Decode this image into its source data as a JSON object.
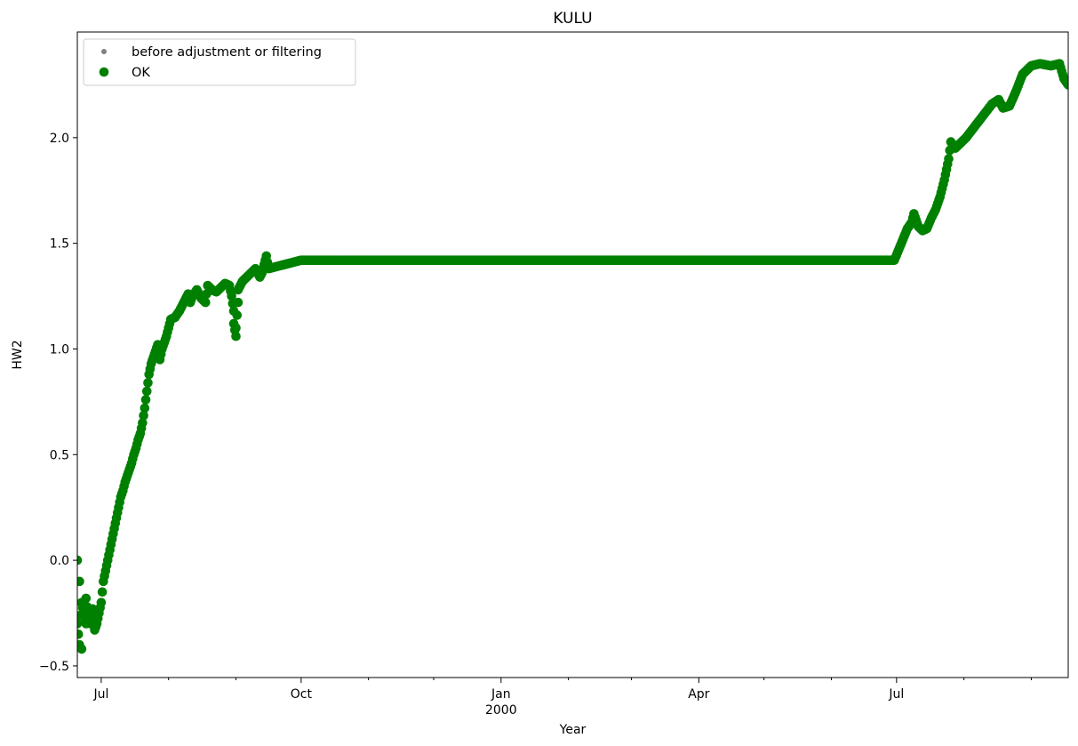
{
  "chart_data": {
    "type": "scatter",
    "title": "KULU",
    "xlabel": "Year",
    "ylabel": "HW2",
    "ylim": [
      -0.555,
      2.5
    ],
    "xlim": [
      "1999-06-20",
      "2000-09-18"
    ],
    "grid": false,
    "legend_placement": "top-left",
    "x_ticks": [
      {
        "date": "1999-07-01",
        "label": "Jul",
        "sublabel": ""
      },
      {
        "date": "1999-10-01",
        "label": "Oct",
        "sublabel": ""
      },
      {
        "date": "2000-01-01",
        "label": "Jan",
        "sublabel": "2000"
      },
      {
        "date": "2000-04-01",
        "label": "Apr",
        "sublabel": ""
      },
      {
        "date": "2000-07-01",
        "label": "Jul",
        "sublabel": ""
      }
    ],
    "y_ticks": [
      {
        "value": -0.5,
        "label": "−0.5"
      },
      {
        "value": 0.0,
        "label": "0.0"
      },
      {
        "value": 0.5,
        "label": "0.5"
      },
      {
        "value": 1.0,
        "label": "1.0"
      },
      {
        "value": 1.5,
        "label": "1.5"
      },
      {
        "value": 2.0,
        "label": "2.0"
      }
    ],
    "series": [
      {
        "name": "before adjustment or filtering",
        "color": "#808080",
        "marker": "small-dot",
        "points": []
      },
      {
        "name": "OK",
        "color": "#008000",
        "marker": "dot",
        "points": [
          [
            "1999-06-20",
            0.0
          ],
          [
            "1999-06-20",
            -0.3
          ],
          [
            "1999-06-21",
            -0.4
          ],
          [
            "1999-06-21",
            -0.1
          ],
          [
            "1999-06-22",
            -0.42
          ],
          [
            "1999-06-22",
            -0.2
          ],
          [
            "1999-06-23",
            -0.25
          ],
          [
            "1999-06-24",
            -0.3
          ],
          [
            "1999-06-24",
            -0.18
          ],
          [
            "1999-06-25",
            -0.26
          ],
          [
            "1999-06-26",
            -0.3
          ],
          [
            "1999-06-27",
            -0.27
          ],
          [
            "1999-06-27",
            -0.23
          ],
          [
            "1999-06-28",
            -0.33
          ],
          [
            "1999-06-29",
            -0.3
          ],
          [
            "1999-06-30",
            -0.25
          ],
          [
            "1999-07-01",
            -0.2
          ],
          [
            "1999-07-02",
            -0.1
          ],
          [
            "1999-07-03",
            -0.05
          ],
          [
            "1999-07-04",
            0.0
          ],
          [
            "1999-07-05",
            0.05
          ],
          [
            "1999-07-06",
            0.1
          ],
          [
            "1999-07-07",
            0.15
          ],
          [
            "1999-07-08",
            0.2
          ],
          [
            "1999-07-09",
            0.25
          ],
          [
            "1999-07-10",
            0.3
          ],
          [
            "1999-07-11",
            0.33
          ],
          [
            "1999-07-12",
            0.37
          ],
          [
            "1999-07-13",
            0.4
          ],
          [
            "1999-07-14",
            0.43
          ],
          [
            "1999-07-15",
            0.46
          ],
          [
            "1999-07-16",
            0.5
          ],
          [
            "1999-07-17",
            0.53
          ],
          [
            "1999-07-18",
            0.57
          ],
          [
            "1999-07-19",
            0.6
          ],
          [
            "1999-07-20",
            0.65
          ],
          [
            "1999-07-21",
            0.72
          ],
          [
            "1999-07-22",
            0.8
          ],
          [
            "1999-07-23",
            0.88
          ],
          [
            "1999-07-24",
            0.93
          ],
          [
            "1999-07-25",
            0.96
          ],
          [
            "1999-07-26",
            0.99
          ],
          [
            "1999-07-27",
            1.02
          ],
          [
            "1999-07-28",
            0.95
          ],
          [
            "1999-07-29",
            1.0
          ],
          [
            "1999-07-30",
            1.03
          ],
          [
            "1999-07-31",
            1.06
          ],
          [
            "1999-08-01",
            1.1
          ],
          [
            "1999-08-02",
            1.14
          ],
          [
            "1999-08-04",
            1.15
          ],
          [
            "1999-08-06",
            1.18
          ],
          [
            "1999-08-08",
            1.22
          ],
          [
            "1999-08-10",
            1.26
          ],
          [
            "1999-08-11",
            1.22
          ],
          [
            "1999-08-12",
            1.25
          ],
          [
            "1999-08-14",
            1.28
          ],
          [
            "1999-08-16",
            1.24
          ],
          [
            "1999-08-18",
            1.22
          ],
          [
            "1999-08-19",
            1.3
          ],
          [
            "1999-08-21",
            1.28
          ],
          [
            "1999-08-23",
            1.27
          ],
          [
            "1999-08-25",
            1.29
          ],
          [
            "1999-08-27",
            1.31
          ],
          [
            "1999-08-29",
            1.3
          ],
          [
            "1999-08-30",
            1.25
          ],
          [
            "1999-08-31",
            1.18
          ],
          [
            "1999-08-31",
            1.12
          ],
          [
            "1999-09-01",
            1.06
          ],
          [
            "1999-09-01",
            1.1
          ],
          [
            "1999-09-02",
            1.22
          ],
          [
            "1999-09-02",
            1.28
          ],
          [
            "1999-09-04",
            1.32
          ],
          [
            "1999-09-06",
            1.34
          ],
          [
            "1999-09-08",
            1.36
          ],
          [
            "1999-09-10",
            1.38
          ],
          [
            "1999-09-12",
            1.34
          ],
          [
            "1999-09-13",
            1.36
          ],
          [
            "1999-09-14",
            1.4
          ],
          [
            "1999-09-15",
            1.44
          ],
          [
            "1999-09-16",
            1.38
          ],
          [
            "1999-10-01",
            1.42
          ],
          [
            "2000-06-30",
            1.42
          ],
          [
            "2000-07-02",
            1.47
          ],
          [
            "2000-07-04",
            1.52
          ],
          [
            "2000-07-06",
            1.57
          ],
          [
            "2000-07-08",
            1.6
          ],
          [
            "2000-07-09",
            1.64
          ],
          [
            "2000-07-11",
            1.58
          ],
          [
            "2000-07-13",
            1.56
          ],
          [
            "2000-07-15",
            1.57
          ],
          [
            "2000-07-17",
            1.62
          ],
          [
            "2000-07-19",
            1.66
          ],
          [
            "2000-07-21",
            1.72
          ],
          [
            "2000-07-23",
            1.8
          ],
          [
            "2000-07-25",
            1.9
          ],
          [
            "2000-07-26",
            1.98
          ],
          [
            "2000-07-28",
            1.95
          ],
          [
            "2000-07-30",
            1.97
          ],
          [
            "2000-08-02",
            2.0
          ],
          [
            "2000-08-05",
            2.04
          ],
          [
            "2000-08-08",
            2.08
          ],
          [
            "2000-08-11",
            2.12
          ],
          [
            "2000-08-14",
            2.16
          ],
          [
            "2000-08-17",
            2.18
          ],
          [
            "2000-08-19",
            2.14
          ],
          [
            "2000-08-22",
            2.15
          ],
          [
            "2000-08-25",
            2.22
          ],
          [
            "2000-08-28",
            2.3
          ],
          [
            "2000-09-01",
            2.34
          ],
          [
            "2000-09-05",
            2.35
          ],
          [
            "2000-09-10",
            2.34
          ],
          [
            "2000-09-14",
            2.35
          ],
          [
            "2000-09-16",
            2.28
          ],
          [
            "2000-09-18",
            2.25
          ]
        ]
      }
    ]
  }
}
